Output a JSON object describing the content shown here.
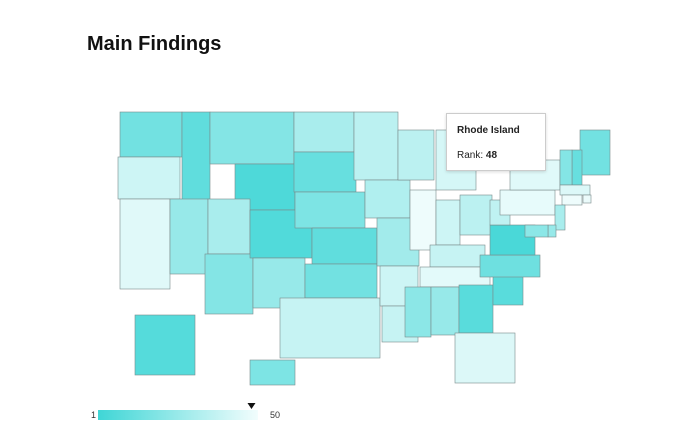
{
  "header": {
    "title": "Main Findings"
  },
  "map": {
    "ranks": [
      15,
      40,
      45,
      10,
      25,
      20,
      5,
      30,
      20,
      6,
      25,
      30,
      12,
      18,
      10,
      15,
      38,
      35,
      32,
      28,
      40,
      38,
      35,
      49,
      42,
      40,
      35,
      38,
      46,
      22,
      25,
      8,
      44,
      8,
      14,
      4,
      36,
      47,
      45,
      15,
      12,
      20,
      44,
      48,
      49,
      30,
      25,
      22,
      7,
      18
    ],
    "color_low": "#3fd6d6",
    "color_high": "#f2fdfd",
    "border": "#7a8a8a"
  },
  "legend": {
    "min": 1,
    "max": 50
  },
  "tooltip": {
    "name": "Rhode Island",
    "label": "Rank:",
    "value": 48
  }
}
